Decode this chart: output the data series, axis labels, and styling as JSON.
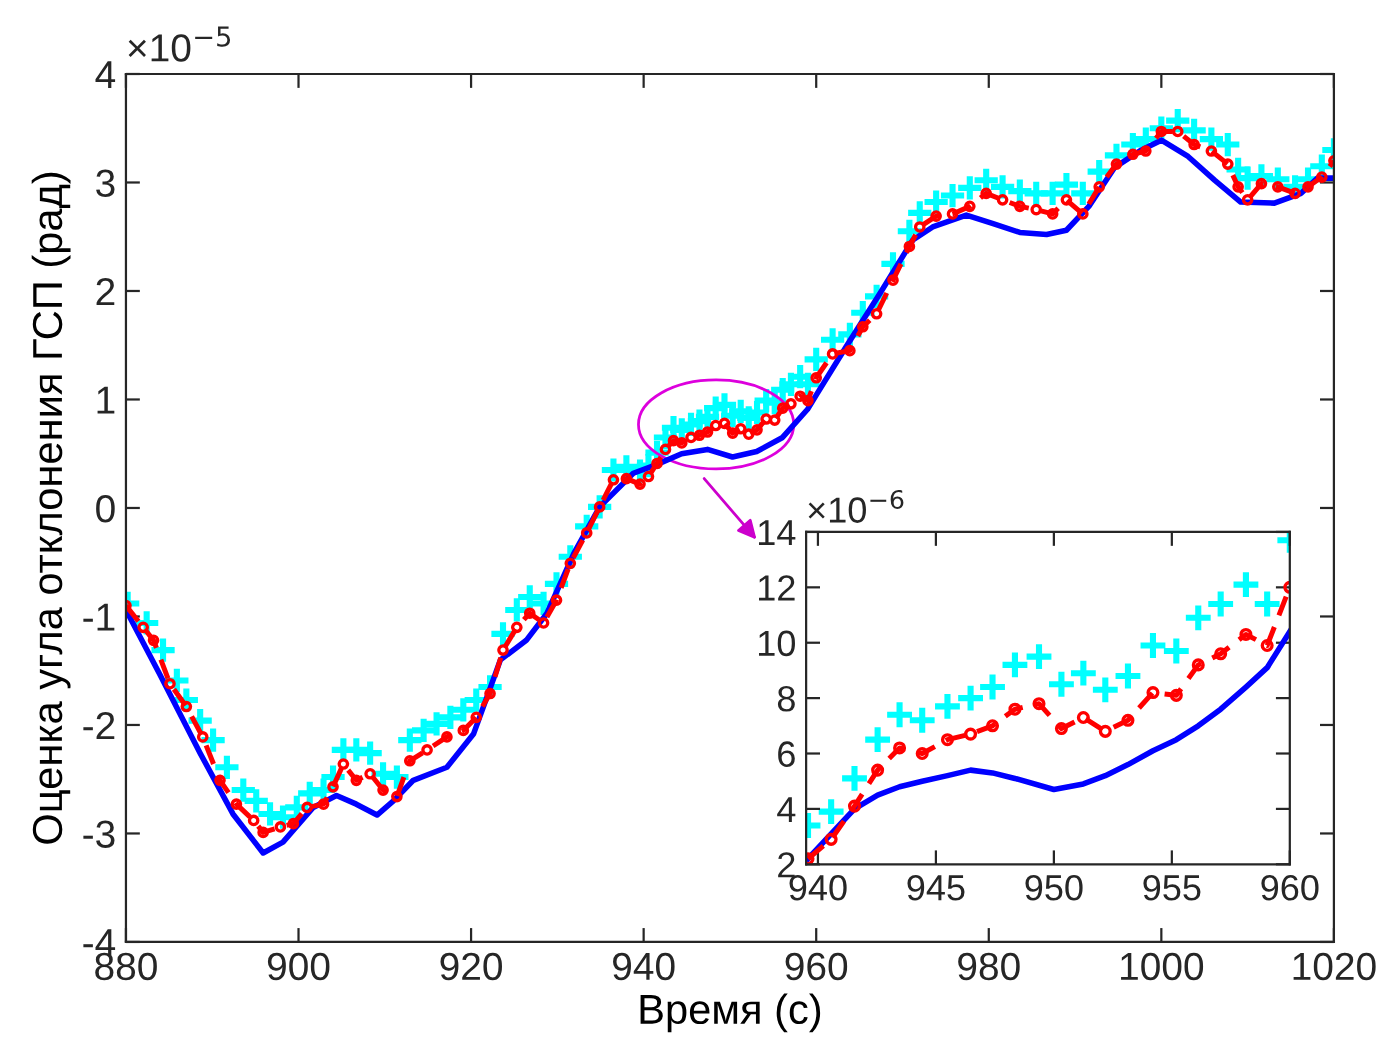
{
  "chart_data": [
    {
      "type": "line",
      "xlabel": "Время (с)",
      "ylabel": "Оценка угла отклонения ГСП (рад)",
      "annotations": [
        "×10$^{−5}$"
      ],
      "xlim": [
        880,
        1020
      ],
      "xticks": [
        880,
        900,
        920,
        940,
        960,
        980,
        1000,
        1020
      ],
      "ylim": [
        -4,
        4
      ],
      "yticks": [
        -4,
        -3,
        -2,
        -1,
        0,
        1,
        2,
        3,
        4
      ],
      "grid": false,
      "legend": false,
      "series": [
        {
          "type": "line",
          "color": "#0000ff",
          "line_style": "solid",
          "marker": "none",
          "x": [
            880,
            883.9,
            888.6,
            892.4,
            895.9,
            898.2,
            901.7,
            904.4,
            906.7,
            909.1,
            911.0,
            913.3,
            917.2,
            920.3,
            923.4,
            926.4,
            928.8,
            931.9,
            934.9,
            938.8,
            941.5,
            944.4,
            947.4,
            950.3,
            953.1,
            956.1,
            959.0,
            960,
            963.5,
            967.4,
            971.2,
            973.5,
            977.4,
            980.5,
            983.6,
            986.7,
            989.0,
            991.6,
            994.6,
            997.7,
            1000.0,
            1003.1,
            1006.2,
            1009.2,
            1013.1,
            1016.2,
            1018.1,
            1020
          ],
          "values": [
            -0.94,
            -1.53,
            -2.26,
            -2.82,
            -3.18,
            -3.08,
            -2.76,
            -2.65,
            -2.73,
            -2.83,
            -2.7,
            -2.51,
            -2.39,
            -2.08,
            -1.4,
            -1.22,
            -0.97,
            -0.42,
            0.01,
            0.32,
            0.4,
            0.5,
            0.54,
            0.47,
            0.52,
            0.65,
            0.91,
            1.04,
            1.49,
            1.98,
            2.47,
            2.59,
            2.7,
            2.62,
            2.54,
            2.52,
            2.56,
            2.78,
            3.14,
            3.3,
            3.39,
            3.24,
            3.02,
            2.82,
            2.81,
            2.9,
            3.04,
            3.04
          ]
        },
        {
          "type": "line",
          "color": "#ff0000",
          "line_style": "dashed",
          "marker": "circle",
          "x": [
            880,
            882,
            883.2,
            885.1,
            887,
            888.9,
            890.9,
            892.8,
            894.8,
            895.9,
            897.9,
            899.4,
            901,
            902.9,
            904,
            905.2,
            906.7,
            908.3,
            909.8,
            911.4,
            912.9,
            914.9,
            917.2,
            919.1,
            920.6,
            922.2,
            923.7,
            925.3,
            926.8,
            928.4,
            929.9,
            931.5,
            933.4,
            934.9,
            936.5,
            938,
            939.58,
            940.56,
            941.55,
            942.53,
            943.46,
            944.42,
            945.49,
            946.47,
            947.4,
            948.35,
            949.37,
            950.32,
            951.25,
            952.18,
            953.14,
            954.2,
            955.19,
            956.12,
            957.07,
            958.14,
            959.04,
            960,
            961.9,
            963.9,
            965.4,
            967,
            968.9,
            970.8,
            972,
            973.9,
            975.8,
            977.8,
            979.7,
            981.6,
            983.6,
            985.5,
            987.4,
            989,
            990.9,
            992.8,
            994.8,
            996.7,
            998.2,
            1000,
            1001.9,
            1003.8,
            1005.8,
            1007.7,
            1008.9,
            1010,
            1011.6,
            1013.5,
            1015.5,
            1017,
            1018.6,
            1020
          ],
          "values": [
            -0.9,
            -1.1,
            -1.22,
            -1.62,
            -1.83,
            -2.11,
            -2.51,
            -2.73,
            -2.88,
            -2.99,
            -2.94,
            -2.91,
            -2.76,
            -2.73,
            -2.57,
            -2.36,
            -2.51,
            -2.45,
            -2.6,
            -2.66,
            -2.33,
            -2.23,
            -2.11,
            -2.05,
            -1.93,
            -1.71,
            -1.31,
            -1.1,
            -0.97,
            -1.06,
            -0.85,
            -0.51,
            -0.23,
            0.01,
            0.26,
            0.27,
            0.22,
            0.29,
            0.41,
            0.54,
            0.62,
            0.6,
            0.65,
            0.67,
            0.7,
            0.76,
            0.78,
            0.69,
            0.73,
            0.68,
            0.72,
            0.82,
            0.81,
            0.92,
            0.96,
            1.03,
            0.99,
            1.2,
            1.42,
            1.45,
            1.67,
            1.79,
            2.1,
            2.41,
            2.59,
            2.69,
            2.71,
            2.78,
            2.9,
            2.84,
            2.78,
            2.75,
            2.71,
            2.84,
            2.71,
            2.96,
            3.17,
            3.26,
            3.29,
            3.47,
            3.47,
            3.35,
            3.29,
            3.17,
            2.96,
            2.84,
            2.99,
            2.96,
            2.9,
            2.96,
            3.05,
            3.2
          ]
        },
        {
          "type": "scatter",
          "color": "#00ffff",
          "marker": "cross",
          "x": [
            880.2,
            882.4,
            884.3,
            885.9,
            887,
            888.6,
            890.1,
            891.7,
            893.6,
            895.1,
            896.7,
            898.2,
            899.8,
            901.3,
            902.9,
            904.0,
            905.2,
            906.7,
            908.3,
            909.8,
            911.4,
            912.9,
            914.5,
            916.0,
            917.6,
            919.1,
            920.6,
            922.2,
            923.7,
            925.3,
            926.8,
            928.4,
            929.9,
            931.5,
            933.4,
            934.9,
            936.5,
            938,
            939.58,
            940.56,
            941.55,
            942.53,
            943.46,
            944.42,
            945.49,
            946.47,
            947.4,
            948.35,
            949.37,
            950.32,
            951.25,
            952.18,
            953.14,
            954.2,
            955.19,
            956.12,
            957.07,
            958.14,
            959.04,
            960,
            961.9,
            963.9,
            965.4,
            967,
            968.9,
            970.8,
            972,
            973.9,
            975.8,
            977.8,
            979.7,
            981.6,
            983.6,
            985.5,
            987.4,
            989,
            990.9,
            992.8,
            994.8,
            996.7,
            998.2,
            1000,
            1001.9,
            1003.8,
            1005.8,
            1007.7,
            1008.9,
            1010,
            1011.6,
            1013.5,
            1015.5,
            1017,
            1018.6,
            1020
          ],
          "values": [
            -0.88,
            -1.06,
            -1.31,
            -1.59,
            -1.77,
            -1.96,
            -2.14,
            -2.39,
            -2.6,
            -2.7,
            -2.82,
            -2.85,
            -2.76,
            -2.63,
            -2.6,
            -2.48,
            -2.23,
            -2.23,
            -2.26,
            -2.45,
            -2.48,
            -2.14,
            -2.05,
            -1.99,
            -1.93,
            -1.86,
            -1.77,
            -1.65,
            -1.16,
            -0.94,
            -0.82,
            -0.88,
            -0.7,
            -0.45,
            -0.17,
            0.01,
            0.35,
            0.38,
            0.34,
            0.39,
            0.51,
            0.65,
            0.74,
            0.72,
            0.77,
            0.8,
            0.84,
            0.92,
            0.95,
            0.85,
            0.89,
            0.83,
            0.88,
            0.99,
            0.97,
            1.09,
            1.14,
            1.21,
            1.14,
            1.37,
            1.55,
            1.6,
            1.8,
            1.95,
            2.25,
            2.55,
            2.72,
            2.82,
            2.88,
            2.95,
            3.02,
            2.96,
            2.92,
            2.9,
            2.9,
            2.98,
            2.9,
            3.1,
            3.25,
            3.35,
            3.4,
            3.5,
            3.57,
            3.48,
            3.4,
            3.35,
            3.12,
            3.04,
            3.06,
            3.03,
            2.96,
            3.03,
            3.15,
            3.3
          ]
        }
      ]
    },
    {
      "type": "line",
      "annotations": [
        "×10$^{−6}$"
      ],
      "xlim": [
        939.5,
        960
      ],
      "xticks": [
        940,
        945,
        950,
        955,
        960
      ],
      "ylim": [
        2,
        14
      ],
      "yticks": [
        2,
        4,
        6,
        8,
        10,
        12,
        14
      ],
      "grid": false,
      "legend": false,
      "series": [
        {
          "type": "line",
          "color": "#0000ff",
          "line_style": "solid",
          "marker": "none",
          "x": [
            939.58,
            940.56,
            941.55,
            942.53,
            943.46,
            944.42,
            945.49,
            946.47,
            947.4,
            948.35,
            950.0,
            951.25,
            952.18,
            953.14,
            954.2,
            955.19,
            956.12,
            957.07,
            958.14,
            959.04,
            960
          ],
          "values": [
            2.2,
            3.1,
            4.0,
            4.5,
            4.8,
            5.0,
            5.2,
            5.4,
            5.3,
            5.1,
            4.7,
            4.9,
            5.2,
            5.6,
            6.1,
            6.5,
            7.0,
            7.6,
            8.4,
            9.1,
            10.4
          ]
        },
        {
          "type": "line",
          "color": "#ff0000",
          "line_style": "dashed",
          "marker": "circle",
          "x": [
            939.58,
            940.56,
            941.55,
            942.53,
            943.46,
            944.42,
            945.49,
            946.47,
            947.4,
            948.35,
            949.37,
            950.32,
            951.25,
            952.18,
            953.14,
            954.2,
            955.19,
            956.12,
            957.07,
            958.14,
            959.04,
            960
          ],
          "values": [
            2.2,
            2.9,
            4.1,
            5.4,
            6.2,
            6.0,
            6.5,
            6.7,
            7.0,
            7.6,
            7.8,
            6.9,
            7.3,
            6.8,
            7.2,
            8.2,
            8.1,
            9.2,
            9.6,
            10.3,
            9.9,
            12.0
          ]
        },
        {
          "type": "scatter",
          "color": "#00ffff",
          "marker": "cross",
          "x": [
            939.58,
            940.56,
            941.55,
            942.53,
            943.46,
            944.42,
            945.49,
            946.47,
            947.4,
            948.35,
            949.37,
            950.32,
            951.25,
            952.18,
            953.14,
            954.2,
            955.19,
            956.12,
            957.07,
            958.14,
            959.04,
            960
          ],
          "values": [
            3.4,
            3.9,
            5.1,
            6.5,
            7.4,
            7.2,
            7.7,
            8.0,
            8.4,
            9.2,
            9.5,
            8.5,
            8.9,
            8.3,
            8.8,
            9.9,
            9.7,
            10.9,
            11.4,
            12.1,
            11.4,
            13.7
          ]
        }
      ]
    }
  ]
}
